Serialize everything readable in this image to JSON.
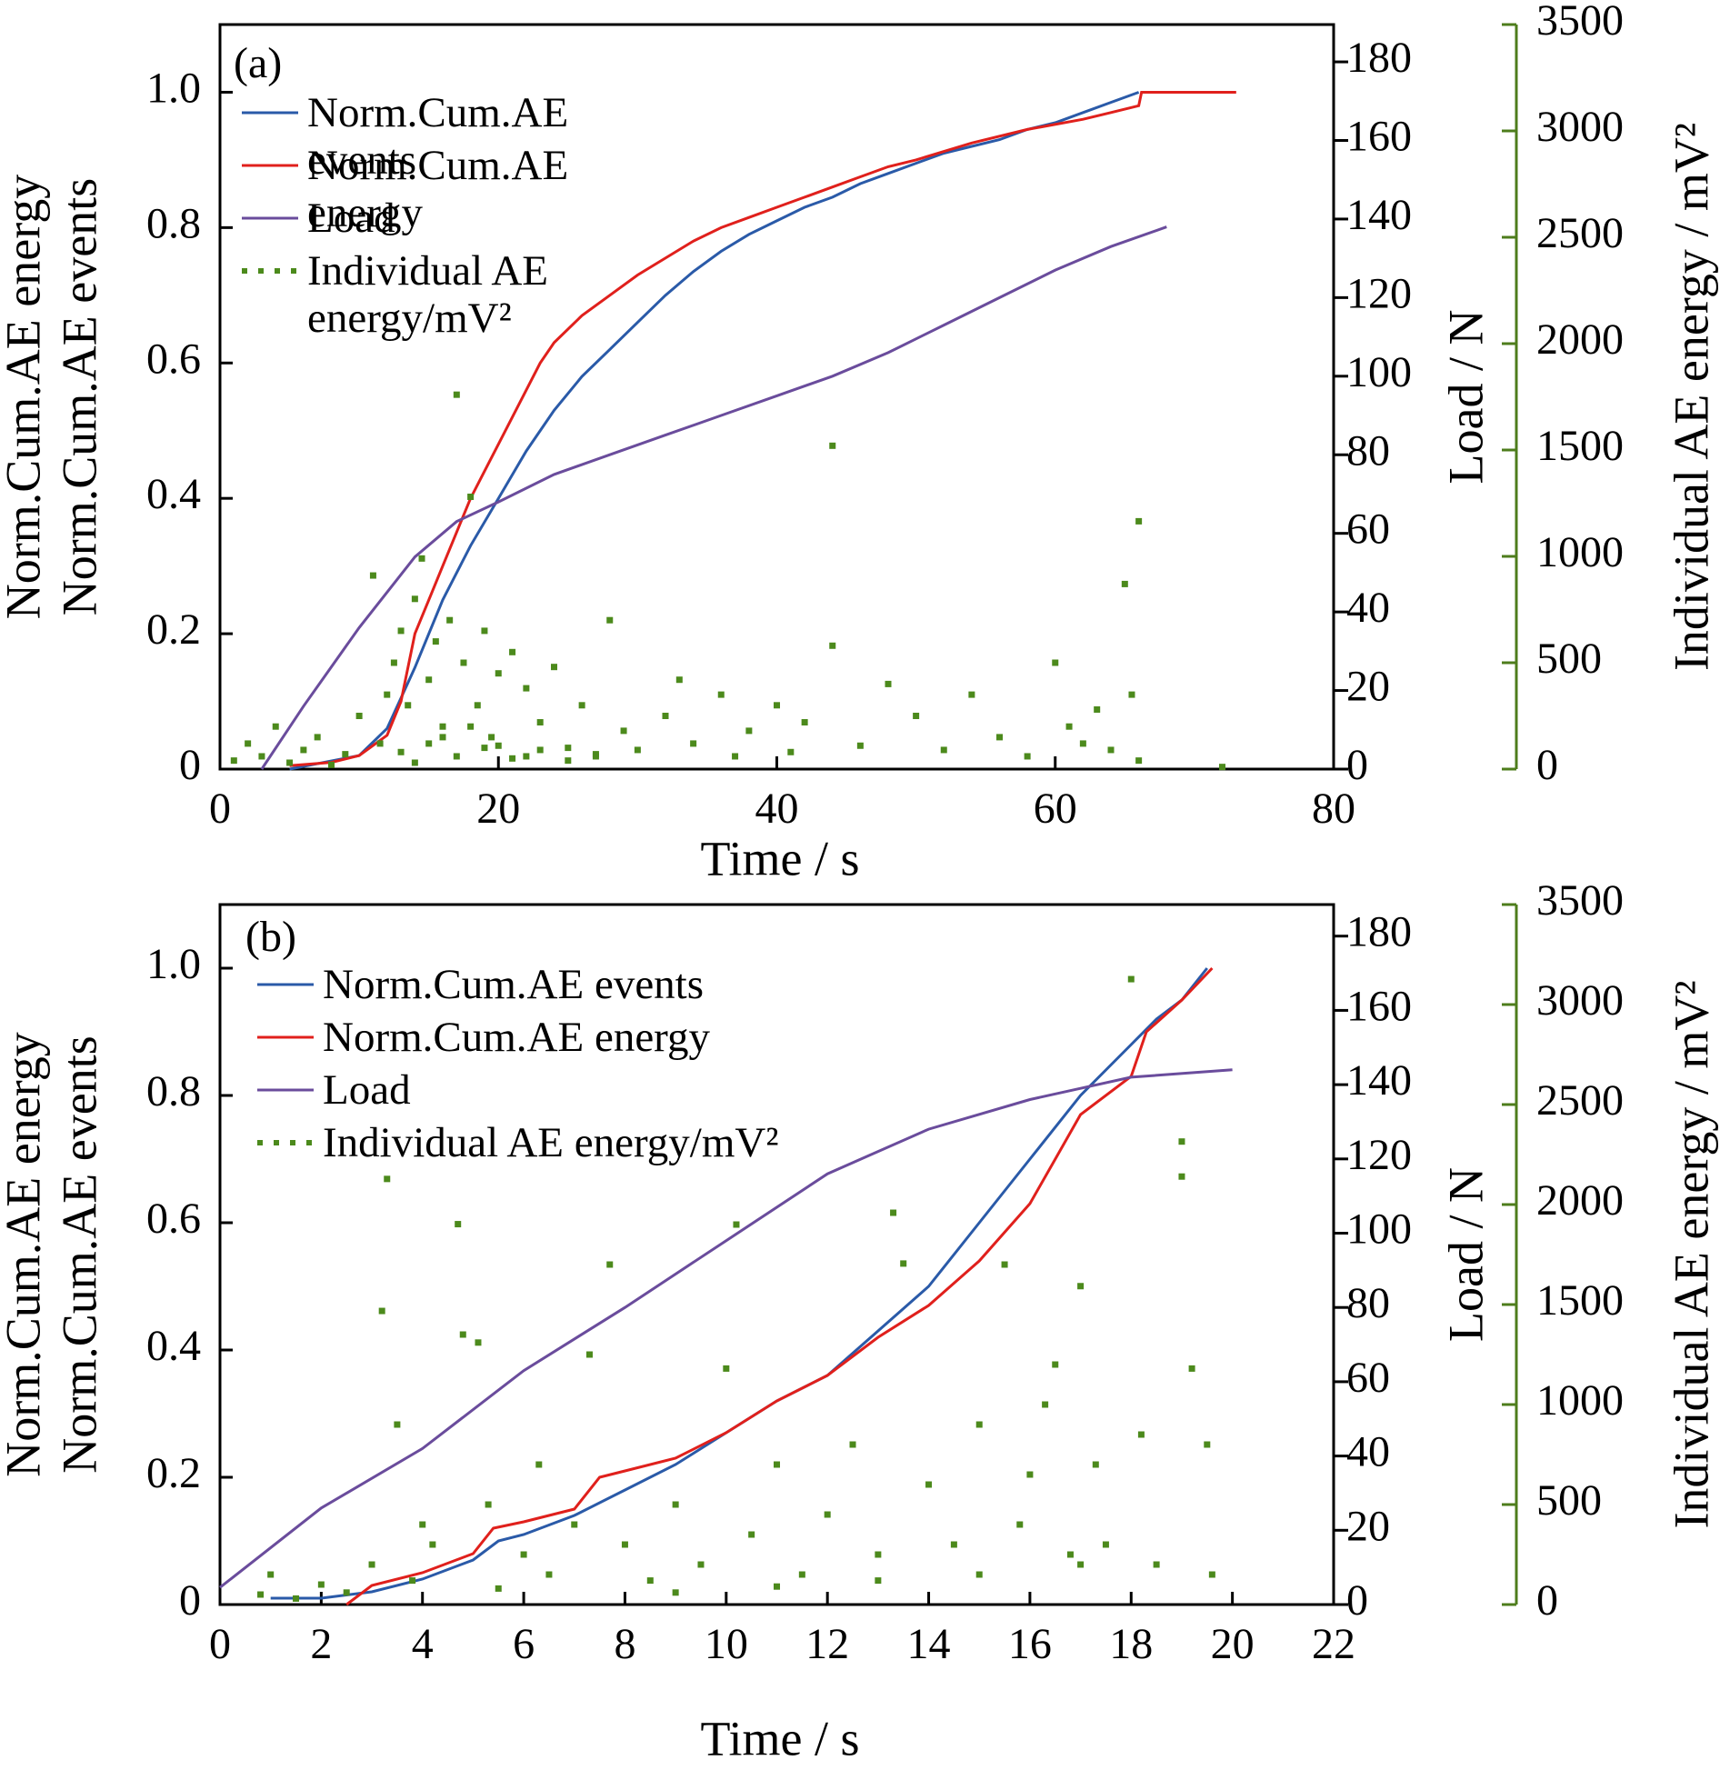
{
  "chart_data": [
    {
      "type": "line",
      "panel_label": "(a)",
      "xlabel": "Time / s",
      "ylabel": [
        "Norm.Cum.AE energy",
        "Norm.Cum.AE events"
      ],
      "y2label": "Load / N",
      "y3label": "Individual AE energy / mV²",
      "xlim": [
        0,
        80
      ],
      "xticks": [
        0,
        20,
        40,
        60,
        80
      ],
      "ylim": [
        0,
        1.1
      ],
      "yticks": [
        0,
        0.2,
        0.4,
        0.6,
        0.8,
        {
          "value": 1,
          "label": "1.0"
        }
      ],
      "y2lim": [
        0,
        189.5
      ],
      "y2ticks": [
        0,
        20,
        40,
        60,
        80,
        100,
        120,
        140,
        160,
        180
      ],
      "y3lim": [
        0,
        3500
      ],
      "y3ticks": [
        0,
        500,
        1000,
        1500,
        2000,
        2500,
        3000,
        3500
      ],
      "series": [
        {
          "name": "Norm.Cum.AE events",
          "color": "#2a5aa8",
          "x": [
            5,
            10,
            12,
            14,
            16,
            18,
            20,
            22,
            24,
            26,
            28,
            30,
            32,
            34,
            36,
            38,
            40,
            42,
            44,
            46,
            48,
            50,
            52,
            54,
            56,
            58,
            60,
            62,
            64,
            66
          ],
          "values": [
            0,
            0.02,
            0.06,
            0.15,
            0.25,
            0.33,
            0.4,
            0.47,
            0.53,
            0.58,
            0.62,
            0.66,
            0.7,
            0.735,
            0.765,
            0.79,
            0.81,
            0.83,
            0.845,
            0.865,
            0.88,
            0.895,
            0.91,
            0.92,
            0.93,
            0.945,
            0.955,
            0.97,
            0.985,
            1.0
          ]
        },
        {
          "name": "Norm.Cum.AE energy",
          "color": "#e0201c",
          "x": [
            5,
            8,
            10,
            12,
            13,
            14,
            15,
            16,
            17,
            18,
            19,
            20,
            21,
            22,
            23,
            24,
            26,
            28,
            30,
            32,
            34,
            36,
            38,
            40,
            42,
            44,
            46,
            48,
            50,
            54,
            58,
            62,
            64,
            66,
            66.2,
            73
          ],
          "values": [
            0.005,
            0.01,
            0.02,
            0.05,
            0.1,
            0.2,
            0.25,
            0.3,
            0.35,
            0.4,
            0.44,
            0.48,
            0.52,
            0.56,
            0.6,
            0.63,
            0.67,
            0.7,
            0.73,
            0.755,
            0.78,
            0.8,
            0.815,
            0.83,
            0.845,
            0.86,
            0.875,
            0.89,
            0.9,
            0.925,
            0.945,
            0.96,
            0.97,
            0.98,
            1.0,
            1.0
          ]
        },
        {
          "name": "Load",
          "color": "#6a4c9c",
          "axis": "y2",
          "x": [
            3,
            6,
            10,
            14,
            17,
            20,
            24,
            28,
            32,
            36,
            40,
            44,
            48,
            52,
            56,
            60,
            64,
            68
          ],
          "values": [
            0,
            16,
            36,
            54,
            63,
            68,
            75,
            80,
            85,
            90,
            95,
            100,
            106,
            113,
            120,
            127,
            133,
            138
          ]
        },
        {
          "name": "Individual AE energy/mV²",
          "color": "#4c8a1c",
          "type": "scatter",
          "axis": "y3",
          "x": [
            1,
            2,
            3,
            4,
            5,
            6,
            7,
            8,
            9,
            10,
            11,
            11.5,
            12,
            12.5,
            13,
            13.5,
            14,
            14.5,
            15,
            15.5,
            16,
            16.5,
            17,
            17.5,
            18,
            18.5,
            19,
            19.5,
            20,
            21,
            22,
            23,
            24,
            25,
            26,
            27,
            28,
            29,
            30,
            32,
            33,
            34,
            36,
            37,
            38,
            40,
            41,
            42,
            44,
            44,
            46,
            48,
            50,
            52,
            54,
            56,
            58,
            60,
            61,
            62,
            63,
            64,
            65,
            65.5,
            66,
            66,
            72,
            13,
            15,
            17,
            19,
            21,
            23,
            25,
            27,
            14,
            16,
            18,
            20,
            22
          ],
          "values": [
            40,
            120,
            60,
            200,
            30,
            90,
            150,
            20,
            70,
            250,
            910,
            120,
            350,
            500,
            650,
            300,
            800,
            990,
            420,
            600,
            200,
            700,
            1760,
            500,
            1280,
            300,
            650,
            150,
            450,
            550,
            380,
            220,
            480,
            100,
            300,
            60,
            700,
            180,
            90,
            250,
            420,
            120,
            350,
            60,
            180,
            300,
            80,
            220,
            1520,
            580,
            110,
            400,
            250,
            90,
            350,
            150,
            60,
            500,
            200,
            120,
            280,
            90,
            870,
            350,
            1165,
            40,
            10,
            80,
            120,
            60,
            100,
            50,
            90,
            40,
            70,
            30,
            150,
            200,
            110,
            60
          ]
        }
      ]
    },
    {
      "type": "line",
      "panel_label": "(b)",
      "xlabel": "Time / s",
      "ylabel": [
        "Norm.Cum.AE energy",
        "Norm.Cum.AE events"
      ],
      "y2label": "Load / N",
      "y3label": "Individual AE energy / mV²",
      "xlim": [
        0,
        22
      ],
      "xticks": [
        0,
        2,
        4,
        6,
        8,
        10,
        12,
        14,
        16,
        18,
        20,
        22
      ],
      "ylim": [
        0,
        1.1
      ],
      "yticks": [
        0,
        0.2,
        0.4,
        0.6,
        0.8,
        {
          "value": 1,
          "label": "1.0"
        }
      ],
      "y2lim": [
        0,
        188.5
      ],
      "y2ticks": [
        0,
        20,
        40,
        60,
        80,
        100,
        120,
        140,
        160,
        180
      ],
      "y3lim": [
        0,
        3500
      ],
      "y3ticks": [
        0,
        500,
        1000,
        1500,
        2000,
        2500,
        3000,
        3500
      ],
      "series": [
        {
          "name": "Norm.Cum.AE events",
          "color": "#2a5aa8",
          "x": [
            1,
            2,
            3,
            4,
            5,
            5.5,
            6,
            7,
            8,
            9,
            10,
            11,
            12,
            13,
            14,
            15,
            16,
            17,
            18,
            18.5,
            19,
            19.5
          ],
          "values": [
            0.01,
            0.01,
            0.02,
            0.04,
            0.07,
            0.1,
            0.11,
            0.14,
            0.18,
            0.22,
            0.27,
            0.32,
            0.36,
            0.43,
            0.5,
            0.6,
            0.7,
            0.8,
            0.88,
            0.92,
            0.95,
            1.0
          ]
        },
        {
          "name": "Norm.Cum.AE energy",
          "color": "#e0201c",
          "x": [
            2.5,
            3,
            4,
            5,
            5.4,
            6,
            7,
            7.5,
            8,
            9,
            10,
            11,
            12,
            13,
            14,
            15,
            16,
            16.5,
            17,
            18,
            18.3,
            19,
            19.6
          ],
          "values": [
            0,
            0.03,
            0.05,
            0.08,
            0.12,
            0.13,
            0.15,
            0.2,
            0.21,
            0.23,
            0.27,
            0.32,
            0.36,
            0.42,
            0.47,
            0.54,
            0.63,
            0.7,
            0.77,
            0.83,
            0.9,
            0.95,
            1.0
          ]
        },
        {
          "name": "Load",
          "color": "#6a4c9c",
          "axis": "y2",
          "x": [
            0,
            2,
            4,
            6,
            8,
            10,
            12,
            14,
            16,
            17,
            18,
            20
          ],
          "values": [
            4.6,
            26,
            42,
            63,
            80,
            98,
            116,
            128,
            136,
            139,
            142,
            144
          ]
        },
        {
          "name": "Individual AE energy/mV²",
          "color": "#4c8a1c",
          "type": "scatter",
          "axis": "y3",
          "x": [
            0.8,
            1,
            1.5,
            2,
            2.5,
            3,
            3.2,
            3.3,
            3.5,
            3.8,
            4,
            4.2,
            4.7,
            4.8,
            5.1,
            5.3,
            5.5,
            6,
            6.3,
            6.5,
            7,
            7.3,
            7.7,
            8,
            8.5,
            9,
            9.5,
            10,
            10.2,
            10.5,
            11,
            11.5,
            12,
            12.5,
            13,
            13.3,
            13.5,
            14,
            14.5,
            15,
            15.5,
            15.8,
            16,
            16.3,
            16.5,
            16.8,
            17,
            17.3,
            17.5,
            18,
            18.2,
            18.5,
            19,
            19,
            19.2,
            19.5,
            19.6,
            9,
            11,
            13,
            15,
            17
          ],
          "values": [
            50,
            150,
            30,
            100,
            60,
            200,
            1468,
            2128,
            900,
            120,
            400,
            300,
            1902,
            1350,
            1310,
            500,
            80,
            250,
            700,
            150,
            400,
            1250,
            1700,
            300,
            120,
            500,
            200,
            1180,
            1900,
            350,
            700,
            150,
            450,
            800,
            250,
            1959,
            1705,
            600,
            300,
            900,
            1700,
            400,
            650,
            1000,
            1200,
            250,
            1592,
            700,
            300,
            3127,
            850,
            200,
            2315,
            2140,
            1180,
            800,
            150,
            60,
            90,
            120,
            150,
            200
          ]
        }
      ]
    }
  ]
}
